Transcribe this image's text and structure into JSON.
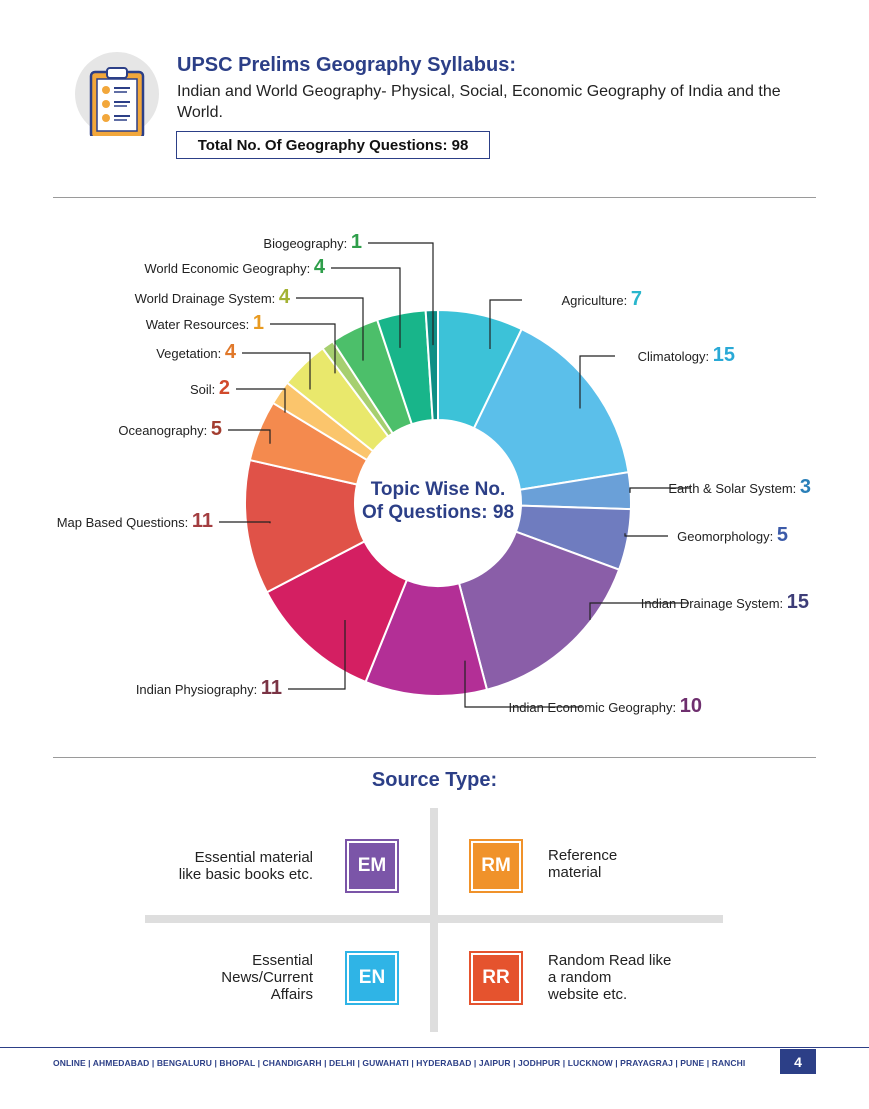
{
  "header": {
    "title": "UPSC Prelims Geography Syllabus:",
    "subtitle": "Indian and World Geography- Physical, Social, Economic Geography of India and the World.",
    "total_label": "Total No. Of Geography Questions: 98",
    "icon": "clipboard-checklist-icon"
  },
  "chart_data": {
    "type": "pie",
    "title": "",
    "center_label": [
      "Topic Wise No.",
      "Of Questions: 98"
    ],
    "total": 98,
    "slices": [
      {
        "name": "Agriculture:",
        "value": 7,
        "color": "#3cc2d8",
        "value_color": "#29b6cc"
      },
      {
        "name": "Climatology:",
        "value": 15,
        "color": "#5bbfea",
        "value_color": "#29a9d6"
      },
      {
        "name": "Earth & Solar System:",
        "value": 3,
        "color": "#6aa0d8",
        "value_color": "#2a7fb8"
      },
      {
        "name": "Geomorphology:",
        "value": 5,
        "color": "#6f7cbf",
        "value_color": "#3b5aa8"
      },
      {
        "name": "Indian Drainage System:",
        "value": 15,
        "color": "#8a5ea8",
        "value_color": "#3d3d78"
      },
      {
        "name": "Indian Economic Geography:",
        "value": 10,
        "color": "#b32f96",
        "value_color": "#6e2f6e"
      },
      {
        "name": "Indian Physiography:",
        "value": 11,
        "color": "#d41f62",
        "value_color": "#7a3344"
      },
      {
        "name": "Map Based Questions:",
        "value": 11,
        "color": "#e05248",
        "value_color": "#a33d40"
      },
      {
        "name": "Oceanography:",
        "value": 5,
        "color": "#f48a4e",
        "value_color": "#a33d30"
      },
      {
        "name": "Soil:",
        "value": 2,
        "color": "#fbc56c",
        "value_color": "#d14a2c"
      },
      {
        "name": "Vegetation:",
        "value": 4,
        "color": "#e9e86c",
        "value_color": "#e0782a"
      },
      {
        "name": "Water Resources:",
        "value": 1,
        "color": "#a6cf70",
        "value_color": "#e89a20"
      },
      {
        "name": "World Drainage System:",
        "value": 4,
        "color": "#4cbf6a",
        "value_color": "#a3b233"
      },
      {
        "name": "World Economic Geography:",
        "value": 4,
        "color": "#18b58a",
        "value_color": "#2e9e4a"
      },
      {
        "name": "Biogeography:",
        "value": 1,
        "color": "#0f8f86",
        "value_color": "#2e9e4a"
      }
    ]
  },
  "source": {
    "title": "Source Type:",
    "items": [
      {
        "code": "EM",
        "text": "Essential material like basic books etc.",
        "line1": "Essential material",
        "line2": "like basic books etc.",
        "line3": "",
        "color": "#7b55a8"
      },
      {
        "code": "RM",
        "text": "Reference material",
        "line1": "Reference",
        "line2": "material",
        "line3": "",
        "color": "#f0922a"
      },
      {
        "code": "EN",
        "text": "Essential News/Current Affairs",
        "line1": "Essential",
        "line2": "News/Current",
        "line3": "Affairs",
        "color": "#2fb4e6"
      },
      {
        "code": "RR",
        "text": "Random Read like a random website etc.",
        "line1": "Random Read like",
        "line2": "a random",
        "line3": "website etc.",
        "color": "#e5532e"
      }
    ]
  },
  "footer": {
    "cities": "ONLINE | AHMEDABAD | BENGALURU | BHOPAL | CHANDIGARH | DELHI | GUWAHATI | HYDERABAD | JAIPUR | JODHPUR | LUCKNOW | PRAYAGRAJ | PUNE | RANCHI",
    "page": "4"
  },
  "colors": {
    "brand": "#2c3f87"
  }
}
